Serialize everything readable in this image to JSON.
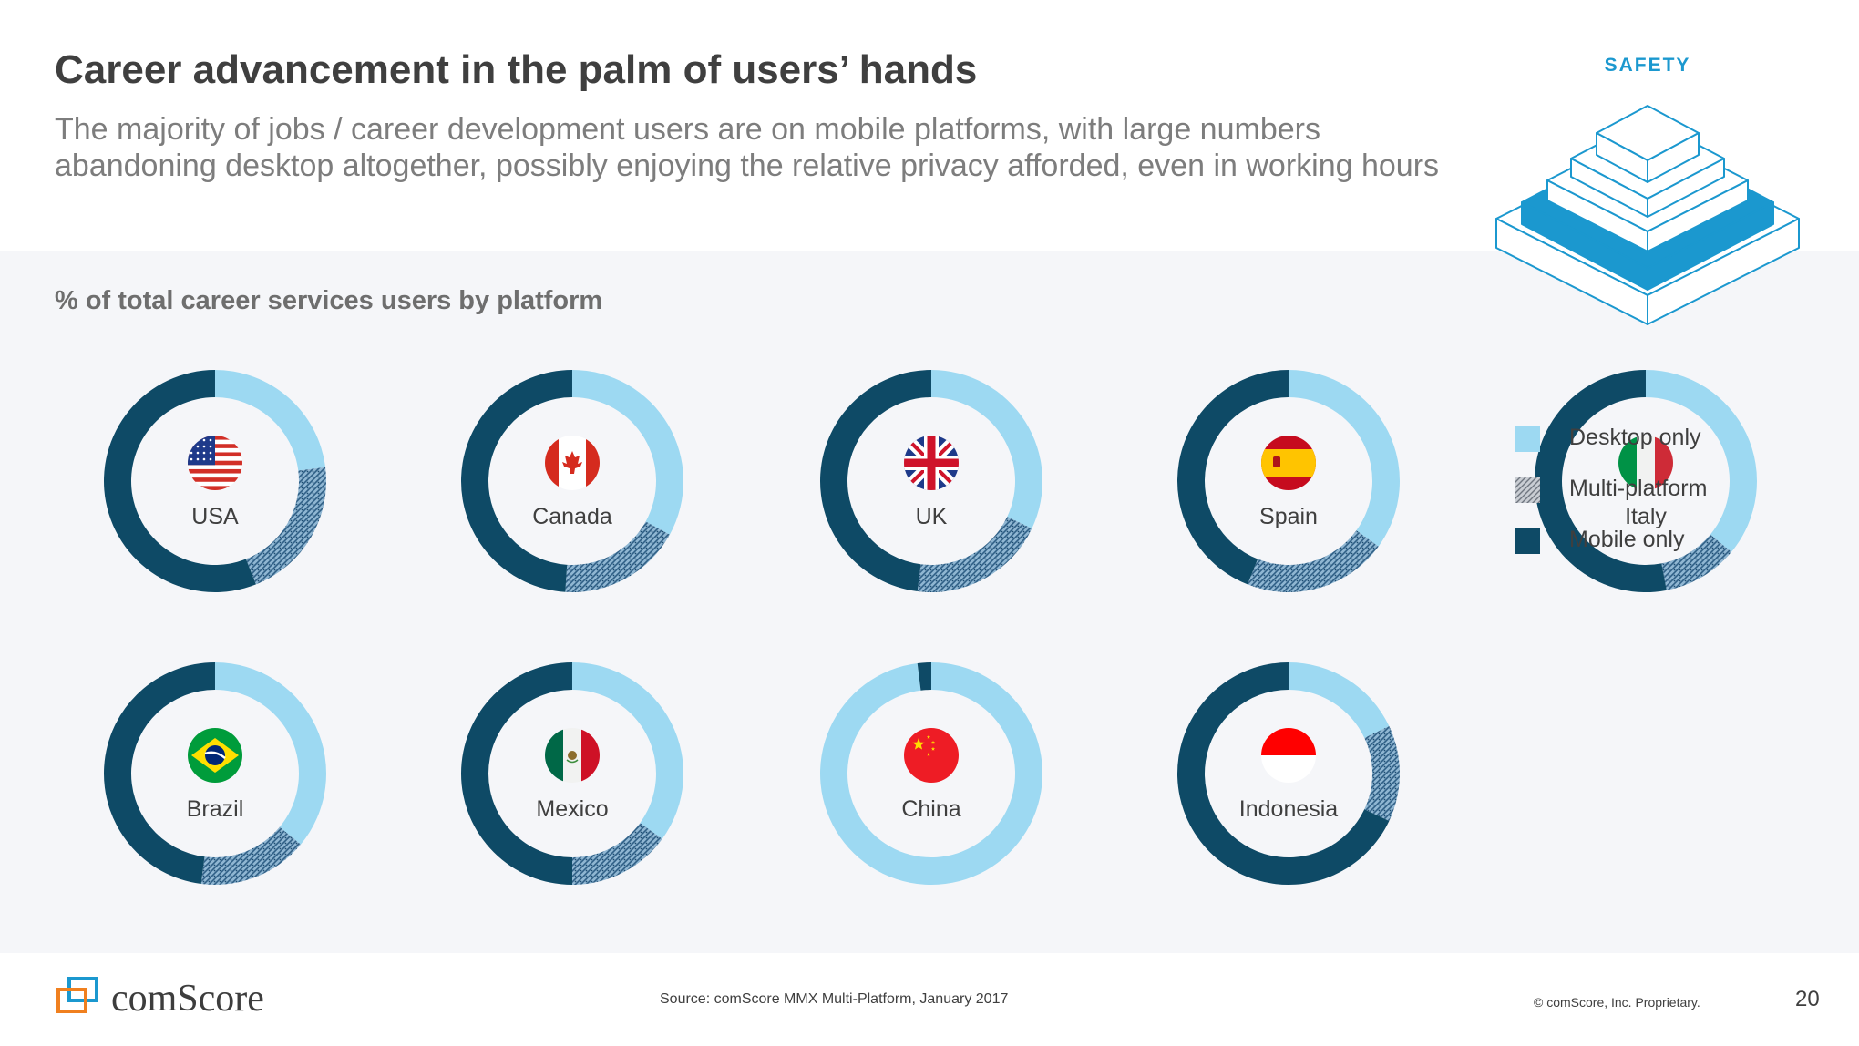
{
  "header": {
    "title": "Career advancement in the palm of users’ hands",
    "subtitle": "The majority of jobs / career development users are on mobile platforms, with large numbers abandoning desktop altogether, possibly enjoying the relative privacy afforded, even in working hours",
    "section_tag": "SAFETY",
    "tag_color": "#1b98cf"
  },
  "chart_data": {
    "type": "donut",
    "title": "% of total career services users by platform",
    "legend_position": "right",
    "categories": [
      "USA",
      "Canada",
      "UK",
      "Spain",
      "Italy",
      "Brazil",
      "Mexico",
      "China",
      "Indonesia"
    ],
    "series": [
      {
        "name": "Desktop only",
        "color": "#9dd9f2",
        "pattern": "solid",
        "values": [
          23,
          33,
          32,
          35,
          36,
          36,
          35,
          98,
          18
        ]
      },
      {
        "name": "Multi-platform",
        "color": "#4a7fa6",
        "pattern": "hatched",
        "values": [
          21,
          18,
          20,
          21,
          11,
          16,
          15,
          0,
          14
        ]
      },
      {
        "name": "Mobile only",
        "color": "#0e4a66",
        "pattern": "solid",
        "values": [
          56,
          49,
          48,
          44,
          53,
          48,
          50,
          2,
          68
        ]
      }
    ],
    "flags": [
      "us-flag",
      "canada-flag",
      "uk-flag",
      "spain-flag",
      "italy-flag",
      "brazil-flag",
      "mexico-flag",
      "china-flag",
      "indonesia-flag"
    ]
  },
  "footer": {
    "logo_text": "comScore",
    "source": "Source: comScore MMX Multi-Platform, January 2017",
    "copyright": "© comScore, Inc. Proprietary.",
    "page_number": "20"
  }
}
